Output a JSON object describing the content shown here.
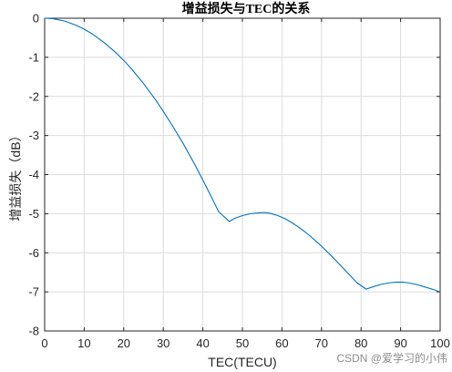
{
  "chart_data": {
    "type": "line",
    "title": "增益损失与TEC的关系",
    "xlabel": "TEC(TECU)",
    "ylabel": "增益损失（dB）",
    "xlim": [
      0,
      100
    ],
    "ylim": [
      -8,
      0
    ],
    "xticks": [
      0,
      10,
      20,
      30,
      40,
      50,
      60,
      70,
      80,
      90,
      100
    ],
    "yticks": [
      0,
      -1,
      -2,
      -3,
      -4,
      -5,
      -6,
      -7,
      -8
    ],
    "xtick_labels": [
      "0",
      "10",
      "20",
      "30",
      "40",
      "50",
      "60",
      "70",
      "80",
      "90",
      "100"
    ],
    "ytick_labels": [
      "0",
      "-1",
      "-2",
      "-3",
      "-4",
      "-5",
      "-6",
      "-7",
      "-8"
    ],
    "grid": true,
    "series": [
      {
        "color": "#0072BD",
        "x": [
          0,
          2,
          5,
          8,
          10,
          12,
          15,
          18,
          20,
          22,
          25,
          28,
          30,
          32,
          35,
          38,
          40,
          42,
          44,
          46.7,
          48,
          50,
          52,
          54,
          55.5,
          57,
          59,
          61,
          63,
          65,
          67,
          70,
          73,
          76,
          79,
          81.3,
          83,
          85,
          87,
          89,
          90.5,
          92,
          94,
          96,
          98,
          100
        ],
        "y": [
          0,
          -0.01,
          -0.07,
          -0.18,
          -0.28,
          -0.4,
          -0.62,
          -0.88,
          -1.08,
          -1.3,
          -1.67,
          -2.08,
          -2.38,
          -2.7,
          -3.2,
          -3.75,
          -4.14,
          -4.54,
          -4.95,
          -5.2,
          -5.12,
          -5.05,
          -5.0,
          -4.98,
          -4.97,
          -4.99,
          -5.05,
          -5.14,
          -5.26,
          -5.4,
          -5.56,
          -5.83,
          -6.13,
          -6.45,
          -6.77,
          -6.93,
          -6.87,
          -6.81,
          -6.77,
          -6.75,
          -6.75,
          -6.77,
          -6.81,
          -6.87,
          -6.93,
          -7.0
        ]
      }
    ]
  },
  "watermark": "CSDN @爱学习的小伟"
}
